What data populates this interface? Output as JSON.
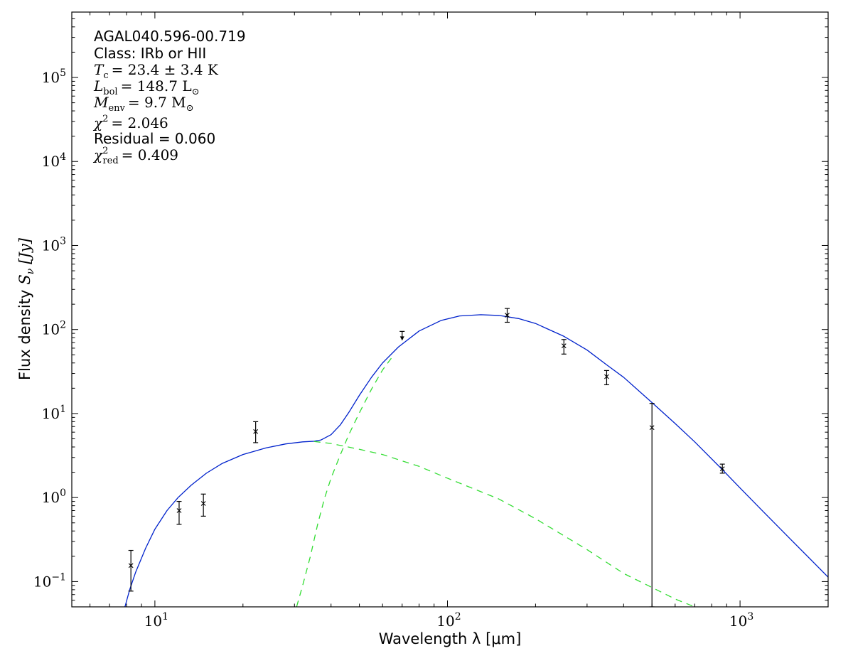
{
  "chart_data": {
    "type": "scatter",
    "title": "",
    "xlabel": "Wavelength λ [μm]",
    "ylabel_text": "Flux density",
    "ylabel_symbol": "S",
    "ylabel_sub": "ν",
    "ylabel_unit": "[Jy]",
    "xscale": "log",
    "yscale": "log",
    "xlim": [
      5.2,
      2000
    ],
    "ylim": [
      0.05,
      600000
    ],
    "grid": false,
    "x_ticks": [
      {
        "value": 10,
        "label": "10",
        "exp": "1"
      },
      {
        "value": 100,
        "label": "10",
        "exp": "2"
      },
      {
        "value": 1000,
        "label": "10",
        "exp": "3"
      }
    ],
    "y_ticks": [
      {
        "value": 0.1,
        "label": "10",
        "exp": "−1"
      },
      {
        "value": 1,
        "label": "10",
        "exp": "0"
      },
      {
        "value": 10,
        "label": "10",
        "exp": "1"
      },
      {
        "value": 100,
        "label": "10",
        "exp": "2"
      },
      {
        "value": 1000,
        "label": "10",
        "exp": "3"
      },
      {
        "value": 10000,
        "label": "10",
        "exp": "4"
      },
      {
        "value": 100000,
        "label": "10",
        "exp": "5"
      }
    ],
    "annotations": {
      "source": "AGAL040.596-00.719",
      "class": "Class: IRb or HII",
      "tc": {
        "symbol": "T",
        "sub": "c",
        "value": "= 23.4 ± 3.4 K"
      },
      "lbol": {
        "symbol": "L",
        "sub": "bol",
        "value": "= 148.7 L",
        "unit_sub": "⊙"
      },
      "menv": {
        "symbol": "M",
        "sub": "env",
        "value": "= 9.7 M",
        "unit_sub": "⊙"
      },
      "chi2": {
        "symbol": "χ",
        "sup": "2",
        "value": "= 2.046"
      },
      "residual": "Residual = 0.060",
      "chi2red": {
        "symbol": "χ",
        "sup": "2",
        "sub": "red",
        "value": "= 0.409"
      }
    },
    "measurements": [
      {
        "x": 8.28,
        "y": 0.155,
        "yerr_low": 0.077,
        "yerr_high": 0.235
      },
      {
        "x": 12.1,
        "y": 0.7,
        "yerr_low": 0.48,
        "yerr_high": 0.9
      },
      {
        "x": 14.65,
        "y": 0.85,
        "yerr_low": 0.6,
        "yerr_high": 1.1
      },
      {
        "x": 22.1,
        "y": 6.1,
        "yerr_low": 4.5,
        "yerr_high": 8.0
      },
      {
        "x": 160,
        "y": 148,
        "yerr_low": 122,
        "yerr_high": 178
      },
      {
        "x": 250,
        "y": 64,
        "yerr_low": 51,
        "yerr_high": 76
      },
      {
        "x": 350,
        "y": 27.5,
        "yerr_low": 22.0,
        "yerr_high": 32.5
      },
      {
        "x": 500,
        "y": 6.8,
        "yerr_low": 0.05,
        "yerr_high": 13.2
      },
      {
        "x": 870,
        "y": 2.2,
        "yerr_low": 1.95,
        "yerr_high": 2.5
      }
    ],
    "upper_limits": [
      {
        "x": 70,
        "y": 95
      }
    ],
    "series": [
      {
        "role": "total fit",
        "color": "#0022cc",
        "style": "solid",
        "points": [
          [
            7.9,
            0.05
          ],
          [
            8.2,
            0.08
          ],
          [
            8.6,
            0.13
          ],
          [
            9.3,
            0.25
          ],
          [
            10,
            0.42
          ],
          [
            11,
            0.7
          ],
          [
            12,
            1.0
          ],
          [
            13.3,
            1.4
          ],
          [
            15,
            1.95
          ],
          [
            17,
            2.55
          ],
          [
            20,
            3.25
          ],
          [
            24,
            3.9
          ],
          [
            28,
            4.35
          ],
          [
            32,
            4.6
          ],
          [
            35,
            4.68
          ],
          [
            37,
            4.85
          ],
          [
            40,
            5.6
          ],
          [
            43,
            7.3
          ],
          [
            46,
            10.3
          ],
          [
            50,
            16.5
          ],
          [
            55,
            27
          ],
          [
            60,
            40
          ],
          [
            68,
            62
          ],
          [
            80,
            96
          ],
          [
            95,
            128
          ],
          [
            110,
            145
          ],
          [
            130,
            150
          ],
          [
            150,
            147
          ],
          [
            175,
            135
          ],
          [
            200,
            118
          ],
          [
            250,
            83
          ],
          [
            300,
            57
          ],
          [
            350,
            38
          ],
          [
            400,
            27
          ],
          [
            500,
            13.5
          ],
          [
            600,
            7.6
          ],
          [
            700,
            4.6
          ],
          [
            870,
            2.15
          ],
          [
            1000,
            1.3
          ],
          [
            1200,
            0.68
          ],
          [
            1500,
            0.31
          ],
          [
            2000,
            0.113
          ]
        ]
      },
      {
        "role": "cold component",
        "color": "#33dd33",
        "style": "dashed",
        "points": [
          [
            30.5,
            0.05
          ],
          [
            32,
            0.09
          ],
          [
            34,
            0.2
          ],
          [
            36,
            0.48
          ],
          [
            38,
            0.98
          ],
          [
            40,
            1.7
          ],
          [
            43,
            3.2
          ],
          [
            46,
            5.6
          ],
          [
            50,
            10.2
          ],
          [
            55,
            19.5
          ],
          [
            60,
            33
          ],
          [
            65,
            48
          ]
        ]
      },
      {
        "role": "warm component",
        "color": "#33dd33",
        "style": "dashed",
        "points": [
          [
            35,
            4.65
          ],
          [
            40,
            4.4
          ],
          [
            50,
            3.75
          ],
          [
            60,
            3.25
          ],
          [
            80,
            2.35
          ],
          [
            100,
            1.7
          ],
          [
            150,
            0.96
          ],
          [
            200,
            0.56
          ],
          [
            300,
            0.24
          ],
          [
            400,
            0.125
          ],
          [
            500,
            0.085
          ],
          [
            600,
            0.062
          ],
          [
            700,
            0.05
          ]
        ]
      }
    ]
  }
}
